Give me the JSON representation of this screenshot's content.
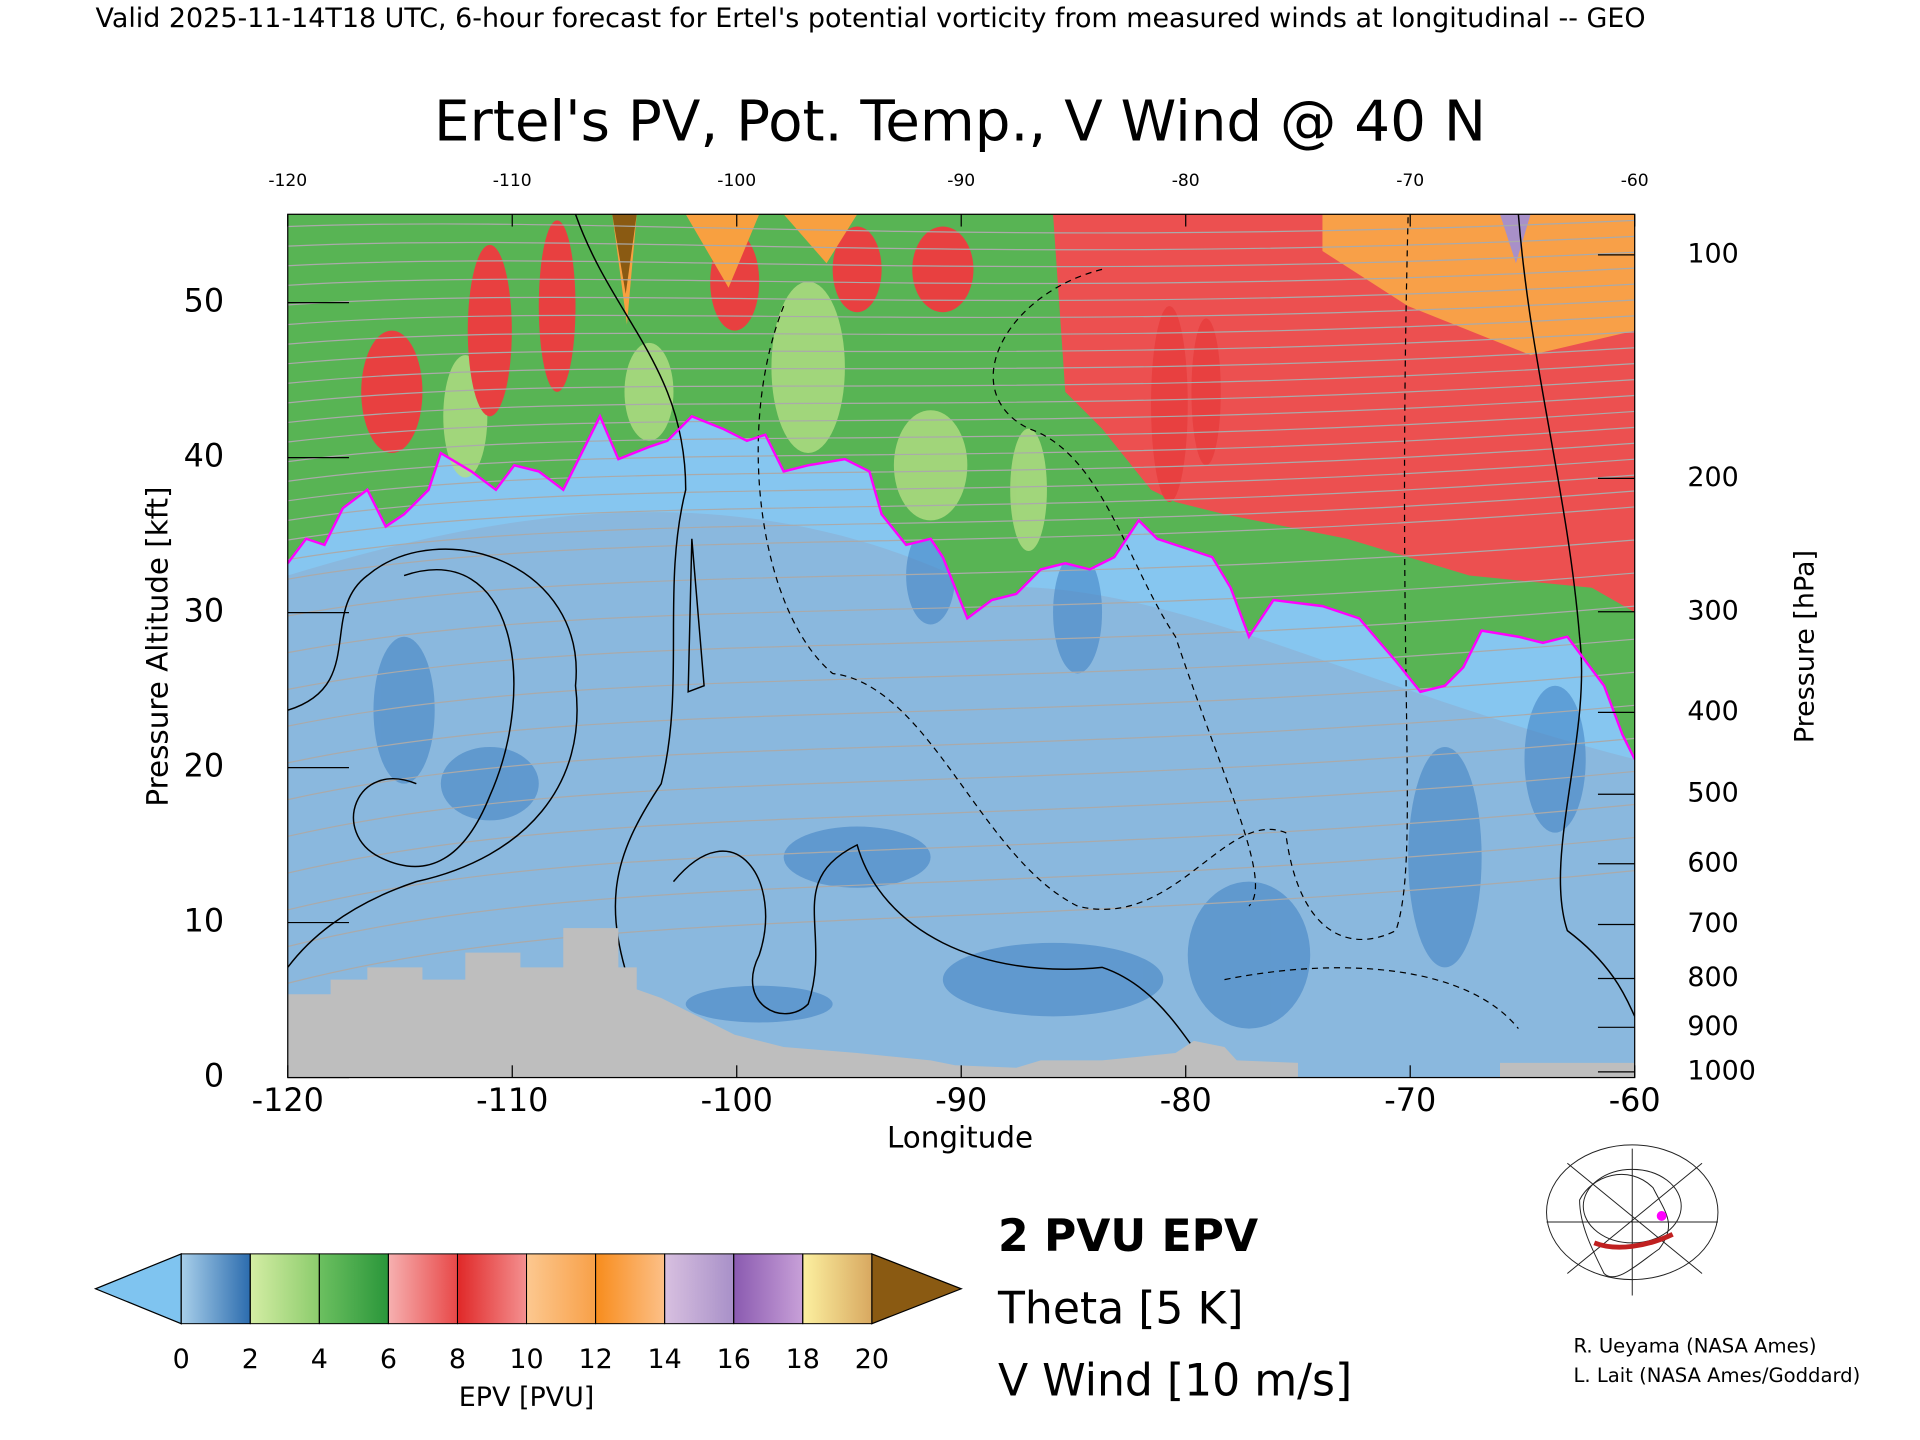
{
  "header": "Valid 2025-11-14T18 UTC, 6-hour forecast for Ertel's potential vorticity from measured winds at longitudinal -- GEO",
  "chart_data": {
    "type": "cross-section",
    "title": "Ertel's PV, Pot. Temp., V Wind @ 40 N",
    "x_label": "Longitude",
    "y_label": "Pressure Altitude [kft]",
    "y2_label": "Pressure [hPa]",
    "xlim": [
      -120,
      -60
    ],
    "xticks": [
      -120,
      -110,
      -100,
      -90,
      -80,
      -70,
      -60
    ],
    "ylim": [
      0,
      55.7
    ],
    "yticks": [
      0,
      10,
      20,
      30,
      40,
      50
    ],
    "y2ticks": [
      100,
      200,
      300,
      400,
      500,
      600,
      700,
      800,
      900,
      1000
    ],
    "legend": [
      {
        "label": "2 PVU EPV",
        "color": "#ff00ff"
      },
      {
        "label": "Theta [5 K]",
        "color": "#b4b4b4"
      },
      {
        "label": "V Wind [10 m/s]",
        "color": "#000000"
      }
    ],
    "colorbar": {
      "label": "EPV [PVU]",
      "ticks": [
        0,
        2,
        4,
        6,
        8,
        10,
        12,
        14,
        16,
        18,
        20
      ],
      "under": "#7fc4f0",
      "over": "#8a5a12",
      "bands": [
        [
          "#a8cfea",
          "#2c6cae"
        ],
        [
          "#d4eda4",
          "#8ccc6c"
        ],
        [
          "#6cc060",
          "#2a963a"
        ],
        [
          "#f6b0b0",
          "#e84848"
        ],
        [
          "#e02828",
          "#f49090"
        ],
        [
          "#fcc890",
          "#f8a048"
        ],
        [
          "#f88c1c",
          "#fcc088"
        ],
        [
          "#d8c0e0",
          "#a890c8"
        ],
        [
          "#8a5ab0",
          "#c8a0d8"
        ],
        [
          "#fcf0a0",
          "#d8a860"
        ]
      ]
    }
  },
  "credits": [
    "R. Ueyama (NASA Ames)",
    "L. Lait (NASA Ames/Goddard)"
  ]
}
